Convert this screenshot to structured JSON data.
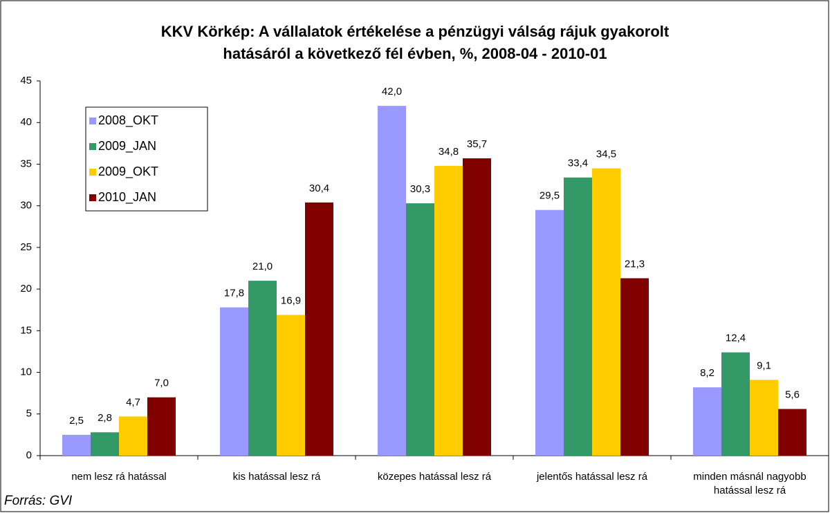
{
  "chart_data": {
    "type": "bar",
    "title": "KKV Körkép: A vállalatok értékelése a pénzügyi válság rájuk gyakorolt hatásáról a következő fél évben, %, 2008-04 - 2010-01",
    "categories": [
      "nem lesz rá hatással",
      "kis hatással lesz rá",
      "közepes hatással lesz rá",
      "jelentős hatással lesz rá",
      "minden másnál nagyobb hatással lesz rá"
    ],
    "series": [
      {
        "name": "2008_OKT",
        "color": "#9999ff",
        "values": [
          2.5,
          17.8,
          42.0,
          29.5,
          8.2
        ],
        "value_labels": [
          "2,5",
          "17,8",
          "42,0",
          "29,5",
          "8,2"
        ]
      },
      {
        "name": "2009_JAN",
        "color": "#339966",
        "values": [
          2.8,
          21.0,
          30.3,
          33.4,
          12.4
        ],
        "value_labels": [
          "2,8",
          "21,0",
          "30,3",
          "33,4",
          "12,4"
        ]
      },
      {
        "name": "2009_OKT",
        "color": "#ffcc00",
        "values": [
          4.7,
          16.9,
          34.8,
          34.5,
          9.1
        ],
        "value_labels": [
          "4,7",
          "16,9",
          "34,8",
          "34,5",
          "9,1"
        ]
      },
      {
        "name": "2010_JAN",
        "color": "#800000",
        "values": [
          7.0,
          30.4,
          35.7,
          21.3,
          5.6
        ],
        "value_labels": [
          "7,0",
          "30,4",
          "35,7",
          "21,3",
          "5,6"
        ]
      }
    ],
    "ylim": [
      0,
      45
    ],
    "yticks": [
      0,
      5,
      10,
      15,
      20,
      25,
      30,
      35,
      40,
      45
    ],
    "legend": "upper left",
    "source": "Forrás: GVI"
  }
}
